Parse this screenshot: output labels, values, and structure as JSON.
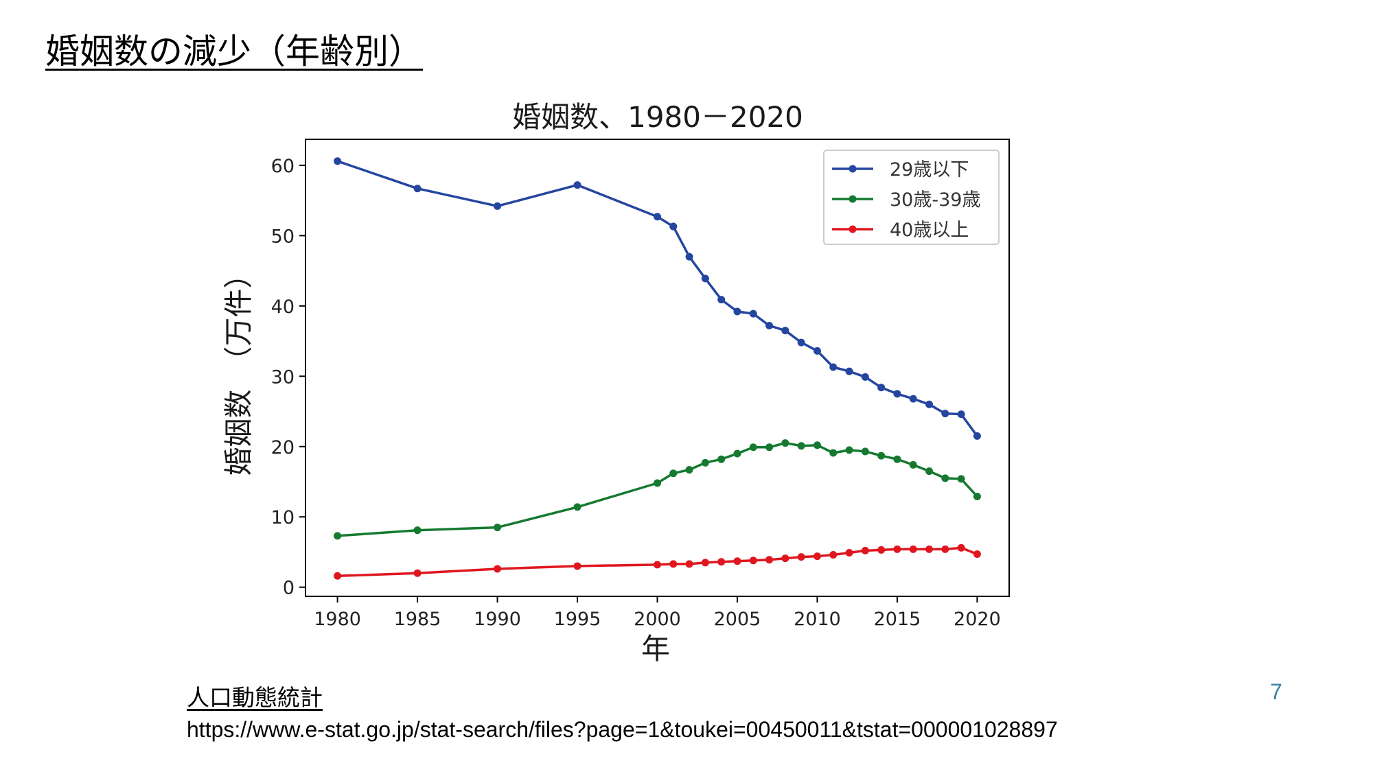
{
  "slide": {
    "title": "婚姻数の減少（年齢別）",
    "source_label": "人口動態統計",
    "source_url": "https://www.e-stat.go.jp/stat-search/files?page=1&toukei=00450011&tstat=000001028897",
    "page_number": "7"
  },
  "chart_data": {
    "type": "line",
    "title": "婚姻数、1980－2020",
    "xlabel": "年",
    "ylabel": "婚姻数　（万件）",
    "xlim": [
      1978,
      2022
    ],
    "ylim": [
      -1.3,
      63.7
    ],
    "xticks": [
      1980,
      1985,
      1990,
      1995,
      2000,
      2005,
      2010,
      2015,
      2020
    ],
    "yticks": [
      0,
      10,
      20,
      30,
      40,
      50,
      60
    ],
    "grid": false,
    "legend_position": "upper right",
    "series": [
      {
        "name": "29歳以下",
        "color": "#2546a0",
        "x": [
          1980,
          1985,
          1990,
          1995,
          2000,
          2001,
          2002,
          2003,
          2004,
          2005,
          2006,
          2007,
          2008,
          2009,
          2010,
          2011,
          2012,
          2013,
          2014,
          2015,
          2016,
          2017,
          2018,
          2019,
          2020
        ],
        "y": [
          60.6,
          56.7,
          54.2,
          57.2,
          52.7,
          51.3,
          47.0,
          43.9,
          40.9,
          39.2,
          38.9,
          37.2,
          36.5,
          34.8,
          33.6,
          31.3,
          30.7,
          29.9,
          28.4,
          27.5,
          26.8,
          26.0,
          24.7,
          24.6,
          21.5
        ]
      },
      {
        "name": "30歳-39歳",
        "color": "#157a30",
        "x": [
          1980,
          1985,
          1990,
          1995,
          2000,
          2001,
          2002,
          2003,
          2004,
          2005,
          2006,
          2007,
          2008,
          2009,
          2010,
          2011,
          2012,
          2013,
          2014,
          2015,
          2016,
          2017,
          2018,
          2019,
          2020
        ],
        "y": [
          7.3,
          8.1,
          8.5,
          11.4,
          14.8,
          16.2,
          16.7,
          17.7,
          18.2,
          19.0,
          19.9,
          19.9,
          20.5,
          20.1,
          20.2,
          19.1,
          19.5,
          19.3,
          18.7,
          18.2,
          17.4,
          16.5,
          15.5,
          15.4,
          12.9
        ]
      },
      {
        "name": "40歳以上",
        "color": "#e0161f",
        "x": [
          1980,
          1985,
          1990,
          1995,
          2000,
          2001,
          2002,
          2003,
          2004,
          2005,
          2006,
          2007,
          2008,
          2009,
          2010,
          2011,
          2012,
          2013,
          2014,
          2015,
          2016,
          2017,
          2018,
          2019,
          2020
        ],
        "y": [
          1.6,
          2.0,
          2.6,
          3.0,
          3.2,
          3.3,
          3.3,
          3.5,
          3.6,
          3.7,
          3.8,
          3.9,
          4.1,
          4.3,
          4.4,
          4.6,
          4.9,
          5.2,
          5.3,
          5.4,
          5.4,
          5.4,
          5.4,
          5.6,
          4.7
        ]
      }
    ]
  }
}
